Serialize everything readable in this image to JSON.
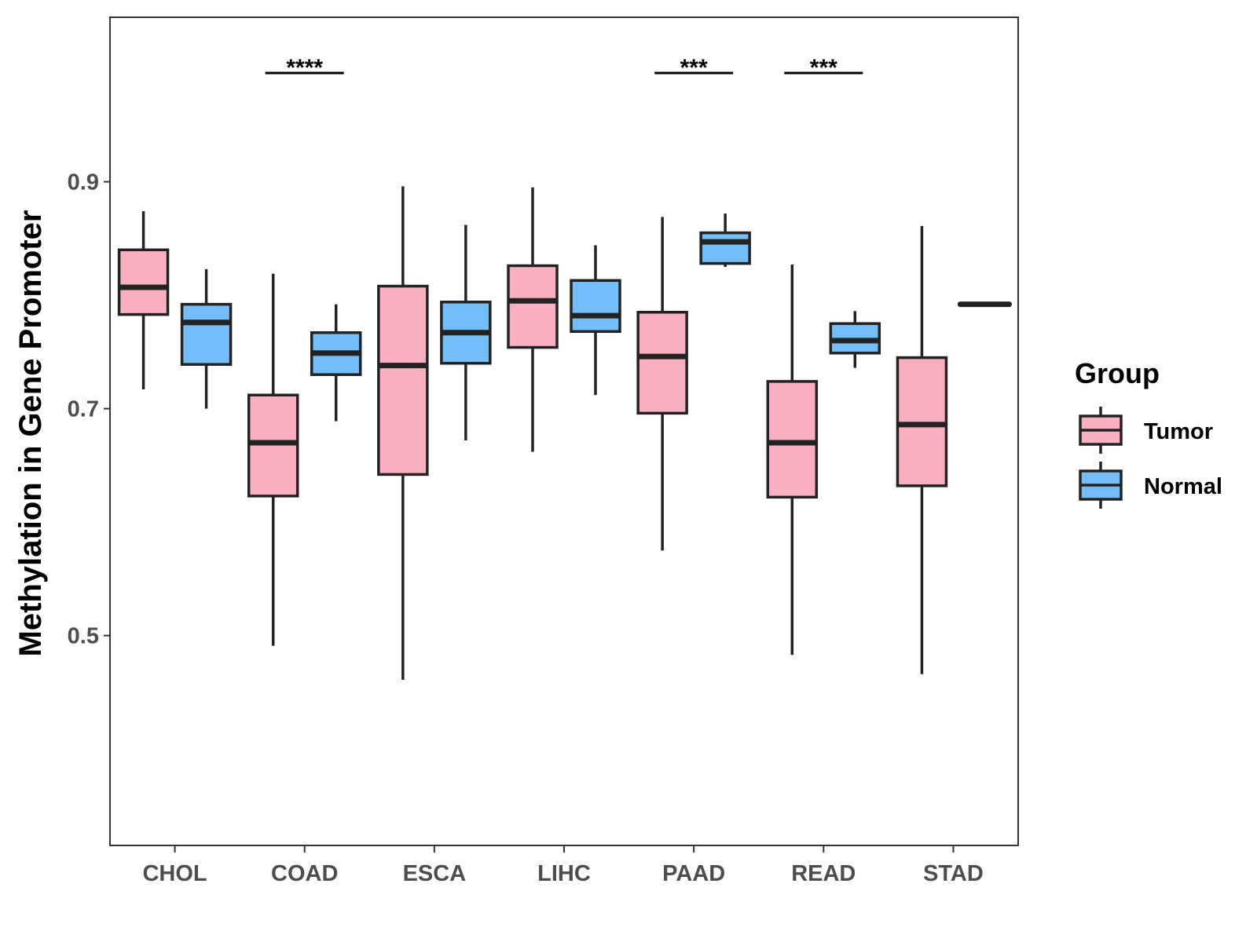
{
  "chart_data": {
    "type": "boxplot",
    "ylabel": "Methylation in Gene Promoter",
    "xlabel": "",
    "ylim": [
      0.315,
      1.045
    ],
    "yticks": [
      0.5,
      0.7,
      0.9
    ],
    "ytick_labels": [
      "0.5",
      "0.7",
      "0.9"
    ],
    "categories": [
      "CHOL",
      "COAD",
      "ESCA",
      "LIHC",
      "PAAD",
      "READ",
      "STAD"
    ],
    "legend": {
      "title": "Group",
      "position": "right",
      "entries": [
        {
          "name": "Tumor",
          "color": "#FBB0C1"
        },
        {
          "name": "Normal",
          "color": "#73BEF8"
        }
      ]
    },
    "series": [
      {
        "name": "Tumor",
        "color": "#FBB0C1",
        "boxes": [
          {
            "category": "CHOL",
            "whisker_low": 0.717,
            "q1": 0.783,
            "median": 0.807,
            "q3": 0.84,
            "whisker_high": 0.874
          },
          {
            "category": "COAD",
            "whisker_low": 0.491,
            "q1": 0.623,
            "median": 0.67,
            "q3": 0.712,
            "whisker_high": 0.819
          },
          {
            "category": "ESCA",
            "whisker_low": 0.461,
            "q1": 0.642,
            "median": 0.738,
            "q3": 0.808,
            "whisker_high": 0.896
          },
          {
            "category": "LIHC",
            "whisker_low": 0.662,
            "q1": 0.754,
            "median": 0.795,
            "q3": 0.826,
            "whisker_high": 0.895
          },
          {
            "category": "PAAD",
            "whisker_low": 0.575,
            "q1": 0.696,
            "median": 0.746,
            "q3": 0.785,
            "whisker_high": 0.869
          },
          {
            "category": "READ",
            "whisker_low": 0.483,
            "q1": 0.622,
            "median": 0.67,
            "q3": 0.724,
            "whisker_high": 0.827
          },
          {
            "category": "STAD",
            "whisker_low": 0.466,
            "q1": 0.632,
            "median": 0.686,
            "q3": 0.745,
            "whisker_high": 0.861
          }
        ]
      },
      {
        "name": "Normal",
        "color": "#73BEF8",
        "boxes": [
          {
            "category": "CHOL",
            "whisker_low": 0.7,
            "q1": 0.739,
            "median": 0.776,
            "q3": 0.792,
            "whisker_high": 0.823
          },
          {
            "category": "COAD",
            "whisker_low": 0.689,
            "q1": 0.73,
            "median": 0.749,
            "q3": 0.767,
            "whisker_high": 0.792
          },
          {
            "category": "ESCA",
            "whisker_low": 0.672,
            "q1": 0.74,
            "median": 0.767,
            "q3": 0.794,
            "whisker_high": 0.862
          },
          {
            "category": "LIHC",
            "whisker_low": 0.712,
            "q1": 0.768,
            "median": 0.782,
            "q3": 0.813,
            "whisker_high": 0.844
          },
          {
            "category": "PAAD",
            "whisker_low": 0.825,
            "q1": 0.828,
            "median": 0.847,
            "q3": 0.855,
            "whisker_high": 0.872
          },
          {
            "category": "READ",
            "whisker_low": 0.736,
            "q1": 0.749,
            "median": 0.76,
            "q3": 0.775,
            "whisker_high": 0.786
          },
          {
            "category": "STAD",
            "whisker_low": 0.792,
            "q1": 0.792,
            "median": 0.792,
            "q3": 0.792,
            "whisker_high": 0.792
          }
        ]
      }
    ],
    "significance": [
      {
        "category": "COAD",
        "label": "****"
      },
      {
        "category": "PAAD",
        "label": "***"
      },
      {
        "category": "READ",
        "label": "***"
      }
    ],
    "grid": false
  }
}
